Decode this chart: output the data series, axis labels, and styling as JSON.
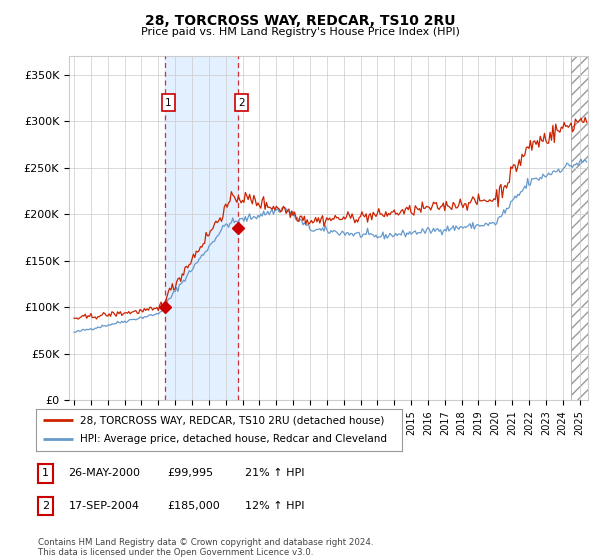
{
  "title": "28, TORCROSS WAY, REDCAR, TS10 2RU",
  "subtitle": "Price paid vs. HM Land Registry's House Price Index (HPI)",
  "xlim": [
    1994.7,
    2025.5
  ],
  "ylim": [
    0,
    370000
  ],
  "yticks": [
    0,
    50000,
    100000,
    150000,
    200000,
    250000,
    300000,
    350000
  ],
  "ytick_labels": [
    "£0",
    "£50K",
    "£100K",
    "£150K",
    "£200K",
    "£250K",
    "£300K",
    "£350K"
  ],
  "xtick_years": [
    1995,
    1996,
    1997,
    1998,
    1999,
    2000,
    2001,
    2002,
    2003,
    2004,
    2005,
    2006,
    2007,
    2008,
    2009,
    2010,
    2011,
    2012,
    2013,
    2014,
    2015,
    2016,
    2017,
    2018,
    2019,
    2020,
    2021,
    2022,
    2023,
    2024,
    2025
  ],
  "sale1_x": 2000.38,
  "sale1_y": 99995,
  "sale1_label": "1",
  "sale1_date": "26-MAY-2000",
  "sale1_price": "£99,995",
  "sale1_hpi": "21% ↑ HPI",
  "sale2_x": 2004.72,
  "sale2_y": 185000,
  "sale2_label": "2",
  "sale2_date": "17-SEP-2004",
  "sale2_price": "£185,000",
  "sale2_hpi": "12% ↑ HPI",
  "shaded_x1": 2000.38,
  "shaded_x2": 2004.72,
  "hpi_line_color": "#6699cc",
  "price_line_color": "#cc2200",
  "sale_marker_color": "#cc0000",
  "legend1_label": "28, TORCROSS WAY, REDCAR, TS10 2RU (detached house)",
  "legend2_label": "HPI: Average price, detached house, Redcar and Cleveland",
  "footer": "Contains HM Land Registry data © Crown copyright and database right 2024.\nThis data is licensed under the Open Government Licence v3.0.",
  "grid_color": "#cccccc",
  "bg_color": "#ffffff",
  "plot_bg_color": "#ffffff",
  "hatch_x_start": 2024.5
}
